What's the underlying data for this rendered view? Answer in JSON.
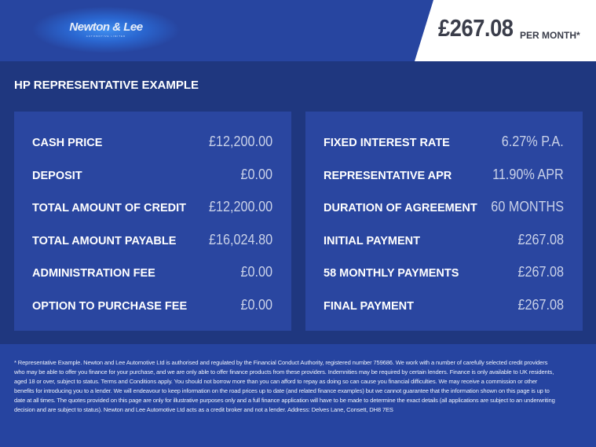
{
  "header": {
    "logo_text": "Newton & Lee",
    "logo_subtext": "AUTOMOTIVE LIMITED",
    "price": "£267.08",
    "price_suffix": "PER MONTH*"
  },
  "title": "HP REPRESENTATIVE EXAMPLE",
  "left": [
    {
      "label": "CASH PRICE",
      "value": "£12,200.00"
    },
    {
      "label": "DEPOSIT",
      "value": "£0.00"
    },
    {
      "label": "TOTAL AMOUNT OF CREDIT",
      "value": "£12,200.00"
    },
    {
      "label": "TOTAL AMOUNT PAYABLE",
      "value": "£16,024.80"
    },
    {
      "label": "ADMINISTRATION FEE",
      "value": "£0.00"
    },
    {
      "label": "OPTION TO PURCHASE FEE",
      "value": "£0.00"
    }
  ],
  "right": [
    {
      "label": "FIXED INTEREST RATE",
      "value": "6.27% P.A."
    },
    {
      "label": "REPRESENTATIVE APR",
      "value": "11.90% APR"
    },
    {
      "label": "DURATION OF AGREEMENT",
      "value": "60 MONTHS"
    },
    {
      "label": "INITIAL PAYMENT",
      "value": "£267.08"
    },
    {
      "label": "58 MONTHLY PAYMENTS",
      "value": "£267.08"
    },
    {
      "label": "FINAL PAYMENT",
      "value": "£267.08"
    }
  ],
  "disclaimer": "* Representative Example. Newton and Lee Automotive Ltd is authorised and regulated by the Financial Conduct Authority, registered number 759686. We work with a number of carefully selected credit providers who may be able to offer you finance for your purchase, and we are only able to offer finance products from these providers. Indemnities may be required by certain lenders. Finance is only available to UK residents, aged 18 or over, subject to status. Terms and Conditions apply. You should not borrow more than you can afford to repay as doing so can cause you financial difficulties. We may receive a commission or other benefits for introducing you to a lender. We will endeavour to keep information on the road prices up to date (and related finance examples) but we cannot guarantee that the information shown on this page is up to date at all times. The quotes provided on this page are only for illustrative purposes only and a full finance application will have to be made to determine the exact details (all applications are subject to an underwriting decision and are subject to status). Newton and Lee Automotive Ltd acts as a credit broker and not a lender. Address: Delves Lane, Consett, DH8 7ES"
}
